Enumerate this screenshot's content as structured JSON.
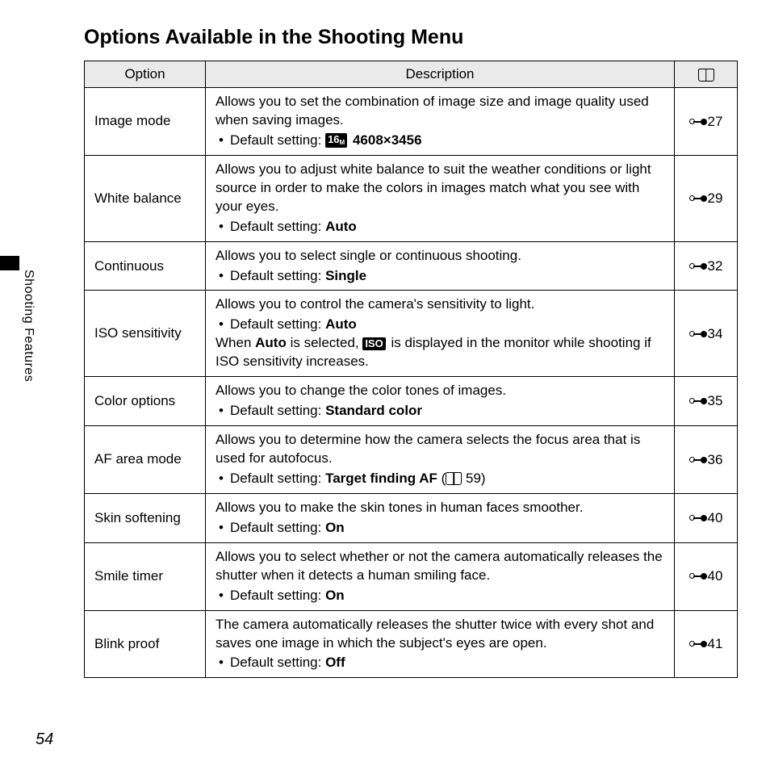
{
  "page_title": "Options Available in the Shooting Menu",
  "sidebar_label": "Shooting Features",
  "page_number": "54",
  "columns": {
    "option": "Option",
    "description": "Description"
  },
  "badge_16m": "16",
  "badge_16m_sub": "M",
  "badge_iso": "ISO",
  "rows": [
    {
      "option": "Image mode",
      "body": "Allows you to set the combination of image size and image quality used when saving images.",
      "default_pre": "Default setting: ",
      "default_bold": "4608×3456",
      "has_16m_badge": true,
      "ref": "27"
    },
    {
      "option": "White balance",
      "body": "Allows you to adjust white balance to suit the weather conditions or light source in order to make the colors in images match what you see with your eyes.",
      "default_pre": "Default setting: ",
      "default_bold": "Auto",
      "ref": "29"
    },
    {
      "option": "Continuous",
      "body": "Allows you to select single or continuous shooting.",
      "default_pre": "Default setting: ",
      "default_bold": "Single",
      "ref": "32"
    },
    {
      "option": "ISO sensitivity",
      "body": "Allows you to control the camera's sensitivity to light.",
      "default_pre": "Default setting: ",
      "default_bold": "Auto",
      "extra_before": "When ",
      "extra_bold": "Auto",
      "extra_mid": " is selected, ",
      "has_iso_badge": true,
      "extra_after": " is displayed in the monitor while shooting if ISO sensitivity increases.",
      "ref": "34"
    },
    {
      "option": "Color options",
      "body": "Allows you to change the color tones of images.",
      "default_pre": "Default setting: ",
      "default_bold": "Standard color",
      "ref": "35"
    },
    {
      "option": "AF area mode",
      "body": "Allows you to determine how the camera selects the focus area that is used for autofocus.",
      "default_pre": "Default setting: ",
      "default_bold": "Target finding AF",
      "default_post_book_ref": " 59)",
      "default_post_open": " (",
      "has_book_ref": true,
      "ref": "36"
    },
    {
      "option": "Skin softening",
      "body": "Allows you to make the skin tones in human faces smoother.",
      "default_pre": "Default setting: ",
      "default_bold": "On",
      "ref": "40"
    },
    {
      "option": "Smile timer",
      "body": "Allows you to select whether or not the camera automatically releases the shutter when it detects a human smiling face.",
      "default_pre": "Default setting: ",
      "default_bold": "On",
      "ref": "40"
    },
    {
      "option": "Blink proof",
      "body": "The camera automatically releases the shutter twice with every shot and saves one image in which the subject's eyes are open.",
      "default_pre": "Default setting: ",
      "default_bold": "Off",
      "ref": "41"
    }
  ]
}
